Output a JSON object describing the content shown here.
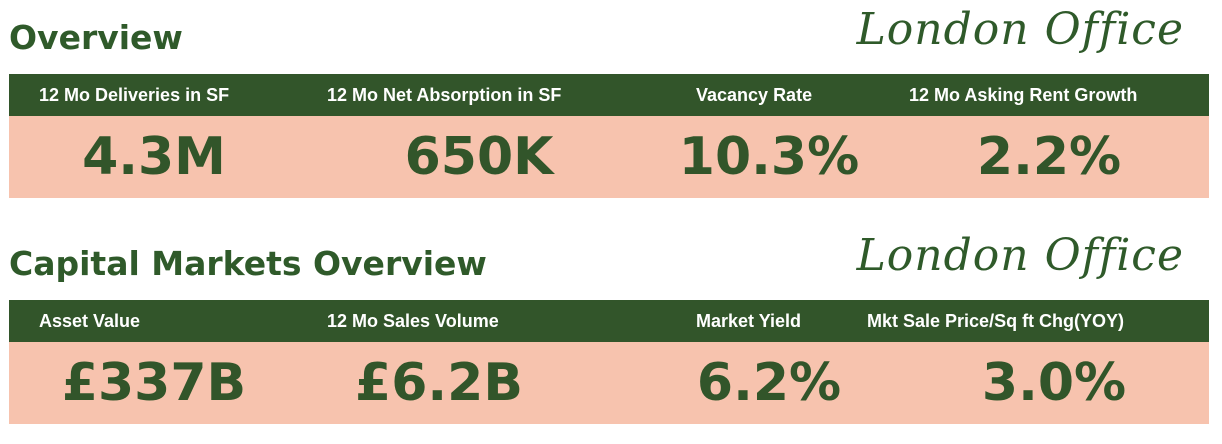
{
  "overview": {
    "title": "Overview",
    "brand": "London Office",
    "headers": [
      "12 Mo Deliveries in SF",
      "12 Mo Net Absorption in SF",
      "Vacancy Rate",
      "12 Mo Asking Rent Growth"
    ],
    "values": [
      "4.3M",
      "650K",
      "10.3%",
      "2.2%"
    ]
  },
  "capital_markets": {
    "title": "Capital Markets Overview",
    "brand": "London Office",
    "headers": [
      "Asset Value",
      "12 Mo Sales Volume",
      "Market Yield",
      "Mkt Sale Price/Sq ft Chg(YOY)"
    ],
    "values": [
      "£337B",
      "£6.2B",
      "6.2%",
      "3.0%"
    ]
  },
  "colors": {
    "dark_green": "#32552a",
    "salmon": "#f7c3ae",
    "white": "#ffffff"
  }
}
